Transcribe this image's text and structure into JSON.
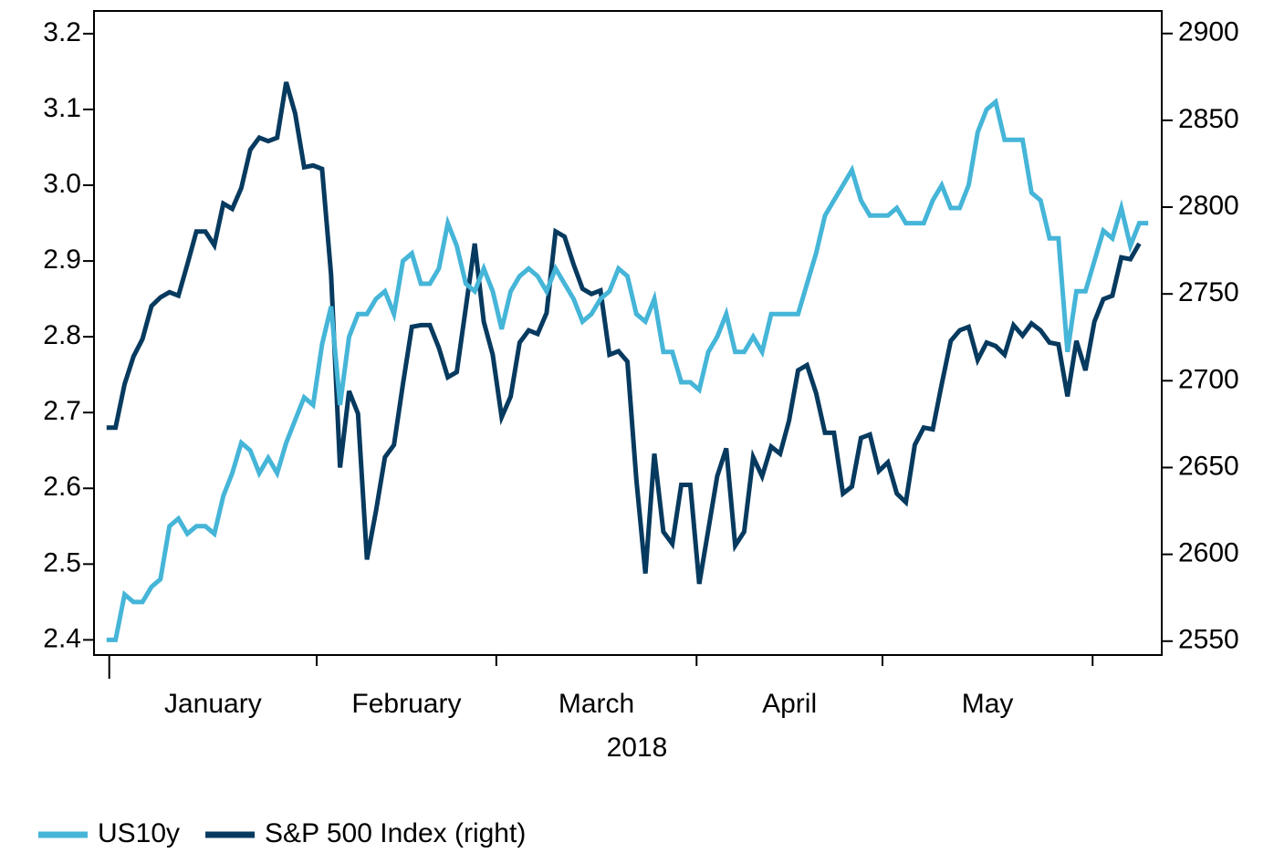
{
  "chart_data": {
    "type": "line",
    "x": [
      0,
      1,
      2,
      3,
      4,
      5,
      6,
      7,
      8,
      9,
      10,
      11,
      12,
      13,
      14,
      15,
      16,
      17,
      18,
      19,
      20,
      21,
      22,
      23,
      24,
      25,
      26,
      27,
      28,
      29,
      30,
      31,
      32,
      33,
      34,
      35,
      36,
      37,
      38,
      39,
      40,
      41,
      42,
      43,
      44,
      45,
      46,
      47,
      48,
      49,
      50,
      51,
      52,
      53,
      54,
      55,
      56,
      57,
      58,
      59,
      60,
      61,
      62,
      63,
      64,
      65,
      66,
      67,
      68,
      69,
      70,
      71,
      72,
      73,
      74,
      75,
      76,
      77,
      78,
      79,
      80,
      81,
      82,
      83,
      84,
      85,
      86,
      87,
      88,
      89,
      90,
      91,
      92,
      93,
      94,
      95,
      96,
      97,
      98,
      99,
      100,
      101,
      102,
      103,
      104,
      105,
      106,
      107,
      108,
      109,
      110,
      111,
      112,
      113,
      114,
      115,
      116
    ],
    "xlim": [
      -1.4,
      117.5
    ],
    "xticks": [
      0.3,
      23.4,
      43.4,
      65.7,
      86.4,
      109.8
    ],
    "x_groups": [
      "January",
      "February",
      "March",
      "April",
      "May"
    ],
    "xlabel": "2018",
    "ylim": [
      2.38,
      3.23
    ],
    "yticks": [
      2.4,
      2.5,
      2.6,
      2.7,
      2.8,
      2.9,
      {
        "value": 3,
        "label": "3.0"
      },
      3.1,
      3.2
    ],
    "y2lim": [
      2542,
      2913
    ],
    "y2ticks": [
      2550,
      2600,
      2650,
      2700,
      2750,
      2800,
      2850,
      2900
    ],
    "legend": "bottom-left",
    "series": [
      {
        "name": "US10y",
        "color": "#45b5d8",
        "values": [
          2.4,
          2.4,
          2.46,
          2.45,
          2.45,
          2.47,
          2.48,
          2.55,
          2.56,
          2.54,
          2.55,
          2.55,
          2.54,
          2.59,
          2.62,
          2.66,
          2.65,
          2.62,
          2.64,
          2.62,
          2.66,
          2.69,
          2.72,
          2.71,
          2.79,
          2.84,
          2.71,
          2.8,
          2.83,
          2.83,
          2.85,
          2.86,
          2.83,
          2.9,
          2.91,
          2.87,
          2.87,
          2.89,
          2.95,
          2.92,
          2.87,
          2.86,
          2.89,
          2.86,
          2.81,
          2.86,
          2.88,
          2.89,
          2.88,
          2.86,
          2.89,
          2.87,
          2.85,
          2.82,
          2.83,
          2.85,
          2.86,
          2.89,
          2.88,
          2.83,
          2.82,
          2.85,
          2.78,
          2.78,
          2.74,
          2.74,
          2.73,
          2.78,
          2.8,
          2.83,
          2.78,
          2.78,
          2.8,
          2.78,
          2.83,
          2.83,
          2.83,
          2.83,
          2.87,
          2.91,
          2.96,
          2.98,
          3.0,
          3.02,
          2.98,
          2.96,
          2.96,
          2.96,
          2.97,
          2.95,
          2.95,
          2.95,
          2.98,
          3.0,
          2.97,
          2.97,
          3.0,
          3.07,
          3.1,
          3.11,
          3.06,
          3.06,
          3.06,
          2.99,
          2.98,
          2.93,
          2.93,
          2.78,
          2.86,
          2.86,
          2.9,
          2.94,
          2.93,
          2.97,
          2.92,
          2.95,
          2.95
        ]
      },
      {
        "name": "S&P 500 Index (right)",
        "color": "#073a5f",
        "axis": "y2",
        "values": [
          2673,
          2673,
          2698,
          2714,
          2724,
          2743,
          2748,
          2751,
          2749,
          2767,
          2786,
          2786,
          2778,
          2802,
          2799,
          2811,
          2833,
          2840,
          2838,
          2840,
          2872,
          2854,
          2823,
          2824,
          2822,
          2761,
          2650,
          2694,
          2681,
          2597,
          2625,
          2656,
          2663,
          2698,
          2731,
          2732,
          2732,
          2719,
          2702,
          2705,
          2742,
          2779,
          2734,
          2715,
          2679,
          2691,
          2722,
          2729,
          2727,
          2739,
          2786,
          2783,
          2767,
          2753,
          2750,
          2752,
          2715,
          2717,
          2711,
          2643,
          2589,
          2658,
          2613,
          2606,
          2640,
          2640,
          2583,
          2614,
          2645,
          2661,
          2605,
          2613,
          2656,
          2645,
          2662,
          2658,
          2677,
          2706,
          2709,
          2693,
          2670,
          2670,
          2635,
          2639,
          2667,
          2669,
          2648,
          2653,
          2635,
          2630,
          2663,
          2673,
          2672,
          2698,
          2723,
          2729,
          2731,
          2712,
          2722,
          2720,
          2715,
          2732,
          2726,
          2733,
          2729,
          2722,
          2721,
          2691,
          2723,
          2706,
          2734,
          2747,
          2749,
          2771,
          2770,
          2779,
          null
        ]
      }
    ]
  }
}
